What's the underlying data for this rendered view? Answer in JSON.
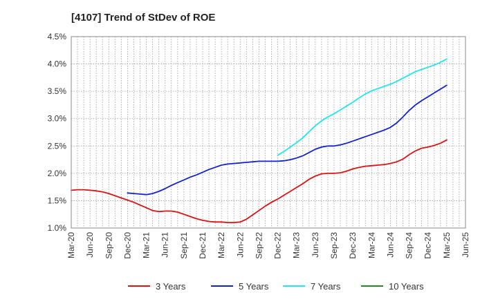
{
  "chart_data": {
    "type": "line",
    "title": "[4107]  Trend of StDev of ROE",
    "xlabel": "",
    "ylabel": "",
    "x_ticks": [
      "Mar-20",
      "Jun-20",
      "Sep-20",
      "Dec-20",
      "Mar-21",
      "Jun-21",
      "Sep-21",
      "Dec-21",
      "Mar-22",
      "Jun-22",
      "Sep-22",
      "Dec-22",
      "Mar-23",
      "Jun-23",
      "Sep-23",
      "Dec-23",
      "Mar-24",
      "Jun-24",
      "Sep-24",
      "Dec-24",
      "Mar-25",
      "Jun-25"
    ],
    "y_ticks": [
      "1.0%",
      "1.5%",
      "2.0%",
      "2.5%",
      "3.0%",
      "3.5%",
      "4.0%",
      "4.5%"
    ],
    "ylim": [
      1.0,
      4.5
    ],
    "grid": true,
    "legend_position": "bottom",
    "series": [
      {
        "name": "3 Years",
        "color": "#dd1111",
        "points": [
          [
            "Mar-20",
            1.69
          ],
          [
            "Apr-20",
            1.7
          ],
          [
            "May-20",
            1.7
          ],
          [
            "Jun-20",
            1.69
          ],
          [
            "Jul-20",
            1.68
          ],
          [
            "Aug-20",
            1.66
          ],
          [
            "Sep-20",
            1.63
          ],
          [
            "Oct-20",
            1.59
          ],
          [
            "Nov-20",
            1.55
          ],
          [
            "Dec-20",
            1.51
          ],
          [
            "Jan-21",
            1.47
          ],
          [
            "Feb-21",
            1.42
          ],
          [
            "Mar-21",
            1.37
          ],
          [
            "Apr-21",
            1.32
          ],
          [
            "May-21",
            1.3
          ],
          [
            "Jun-21",
            1.31
          ],
          [
            "Jul-21",
            1.31
          ],
          [
            "Aug-21",
            1.29
          ],
          [
            "Sep-21",
            1.25
          ],
          [
            "Oct-21",
            1.21
          ],
          [
            "Nov-21",
            1.17
          ],
          [
            "Dec-21",
            1.14
          ],
          [
            "Jan-22",
            1.12
          ],
          [
            "Feb-22",
            1.11
          ],
          [
            "Mar-22",
            1.11
          ],
          [
            "Apr-22",
            1.1
          ],
          [
            "May-22",
            1.1
          ],
          [
            "Jun-22",
            1.11
          ],
          [
            "Jul-22",
            1.16
          ],
          [
            "Aug-22",
            1.24
          ],
          [
            "Sep-22",
            1.32
          ],
          [
            "Oct-22",
            1.4
          ],
          [
            "Nov-22",
            1.47
          ],
          [
            "Dec-22",
            1.53
          ],
          [
            "Jan-23",
            1.6
          ],
          [
            "Feb-23",
            1.67
          ],
          [
            "Mar-23",
            1.74
          ],
          [
            "Apr-23",
            1.81
          ],
          [
            "May-23",
            1.89
          ],
          [
            "Jun-23",
            1.95
          ],
          [
            "Jul-23",
            1.99
          ],
          [
            "Aug-23",
            2.0
          ],
          [
            "Sep-23",
            2.0
          ],
          [
            "Oct-23",
            2.01
          ],
          [
            "Nov-23",
            2.04
          ],
          [
            "Dec-23",
            2.08
          ],
          [
            "Jan-24",
            2.11
          ],
          [
            "Feb-24",
            2.13
          ],
          [
            "Mar-24",
            2.14
          ],
          [
            "Apr-24",
            2.15
          ],
          [
            "May-24",
            2.16
          ],
          [
            "Jun-24",
            2.18
          ],
          [
            "Jul-24",
            2.21
          ],
          [
            "Aug-24",
            2.26
          ],
          [
            "Sep-24",
            2.34
          ],
          [
            "Oct-24",
            2.41
          ],
          [
            "Nov-24",
            2.46
          ],
          [
            "Dec-24",
            2.48
          ],
          [
            "Jan-25",
            2.51
          ],
          [
            "Feb-25",
            2.55
          ],
          [
            "Mar-25",
            2.61
          ]
        ]
      },
      {
        "name": "5 Years",
        "color": "#1122cc",
        "points": [
          [
            "Dec-20",
            1.64
          ],
          [
            "Jan-21",
            1.63
          ],
          [
            "Feb-21",
            1.62
          ],
          [
            "Mar-21",
            1.61
          ],
          [
            "Apr-21",
            1.63
          ],
          [
            "May-21",
            1.67
          ],
          [
            "Jun-21",
            1.72
          ],
          [
            "Jul-21",
            1.78
          ],
          [
            "Aug-21",
            1.83
          ],
          [
            "Sep-21",
            1.88
          ],
          [
            "Oct-21",
            1.93
          ],
          [
            "Nov-21",
            1.97
          ],
          [
            "Dec-21",
            2.02
          ],
          [
            "Jan-22",
            2.07
          ],
          [
            "Feb-22",
            2.11
          ],
          [
            "Mar-22",
            2.15
          ],
          [
            "Apr-22",
            2.17
          ],
          [
            "May-22",
            2.18
          ],
          [
            "Jun-22",
            2.19
          ],
          [
            "Jul-22",
            2.2
          ],
          [
            "Aug-22",
            2.21
          ],
          [
            "Sep-22",
            2.22
          ],
          [
            "Oct-22",
            2.22
          ],
          [
            "Nov-22",
            2.22
          ],
          [
            "Dec-22",
            2.22
          ],
          [
            "Jan-23",
            2.23
          ],
          [
            "Feb-23",
            2.25
          ],
          [
            "Mar-23",
            2.28
          ],
          [
            "Apr-23",
            2.32
          ],
          [
            "May-23",
            2.38
          ],
          [
            "Jun-23",
            2.44
          ],
          [
            "Jul-23",
            2.48
          ],
          [
            "Aug-23",
            2.5
          ],
          [
            "Sep-23",
            2.5
          ],
          [
            "Oct-23",
            2.52
          ],
          [
            "Nov-23",
            2.55
          ],
          [
            "Dec-23",
            2.59
          ],
          [
            "Jan-24",
            2.63
          ],
          [
            "Feb-24",
            2.67
          ],
          [
            "Mar-24",
            2.71
          ],
          [
            "Apr-24",
            2.75
          ],
          [
            "May-24",
            2.79
          ],
          [
            "Jun-24",
            2.84
          ],
          [
            "Jul-24",
            2.92
          ],
          [
            "Aug-24",
            3.03
          ],
          [
            "Sep-24",
            3.15
          ],
          [
            "Oct-24",
            3.25
          ],
          [
            "Nov-24",
            3.33
          ],
          [
            "Dec-24",
            3.4
          ],
          [
            "Jan-25",
            3.47
          ],
          [
            "Feb-25",
            3.54
          ],
          [
            "Mar-25",
            3.61
          ]
        ]
      },
      {
        "name": "7 Years",
        "color": "#22e5ee",
        "points": [
          [
            "Dec-22",
            2.33
          ],
          [
            "Jan-23",
            2.4
          ],
          [
            "Feb-23",
            2.48
          ],
          [
            "Mar-23",
            2.56
          ],
          [
            "Apr-23",
            2.65
          ],
          [
            "May-23",
            2.76
          ],
          [
            "Jun-23",
            2.87
          ],
          [
            "Jul-23",
            2.96
          ],
          [
            "Aug-23",
            3.03
          ],
          [
            "Sep-23",
            3.09
          ],
          [
            "Oct-23",
            3.16
          ],
          [
            "Nov-23",
            3.23
          ],
          [
            "Dec-23",
            3.3
          ],
          [
            "Jan-24",
            3.38
          ],
          [
            "Feb-24",
            3.45
          ],
          [
            "Mar-24",
            3.51
          ],
          [
            "Apr-24",
            3.55
          ],
          [
            "May-24",
            3.59
          ],
          [
            "Jun-24",
            3.63
          ],
          [
            "Jul-24",
            3.68
          ],
          [
            "Aug-24",
            3.74
          ],
          [
            "Sep-24",
            3.8
          ],
          [
            "Oct-24",
            3.86
          ],
          [
            "Nov-24",
            3.9
          ],
          [
            "Dec-24",
            3.94
          ],
          [
            "Jan-25",
            3.98
          ],
          [
            "Feb-25",
            4.03
          ],
          [
            "Mar-25",
            4.09
          ]
        ]
      },
      {
        "name": "10 Years",
        "color": "#228822",
        "points": []
      }
    ]
  }
}
